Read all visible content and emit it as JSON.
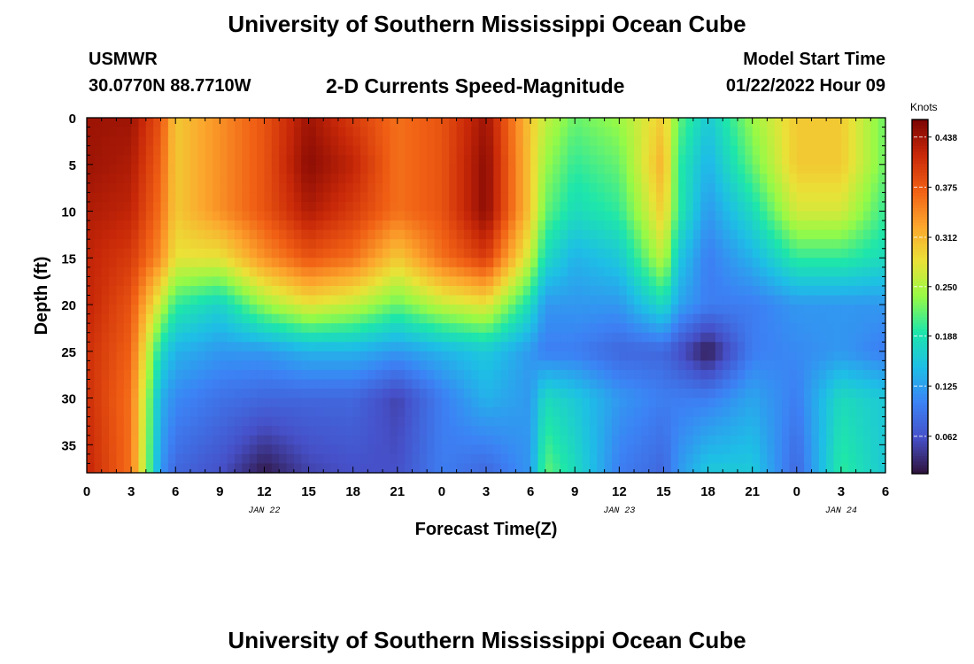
{
  "header": {
    "title": "University of Southern Mississippi Ocean Cube",
    "station": "USMWR",
    "coords": "30.0770N  88.7710W",
    "subtitle": "2-D Currents Speed-Magnitude",
    "model_start_label": "Model Start Time",
    "model_start_value": "01/22/2022 Hour 09"
  },
  "footer": {
    "title": "University of Southern Mississippi Ocean Cube"
  },
  "chart_data": {
    "type": "heatmap",
    "xlabel": "Forecast Time(Z)",
    "ylabel": "Depth (ft)",
    "x_units": "hours from 00Z Jan 22",
    "xlim": [
      0,
      54
    ],
    "ylim": [
      38,
      0
    ],
    "x_tick_labels": [
      "0",
      "3",
      "6",
      "9",
      "12",
      "15",
      "18",
      "21",
      "0",
      "3",
      "6",
      "9",
      "12",
      "15",
      "18",
      "21",
      "0",
      "3",
      "6"
    ],
    "y_ticks": [
      0,
      5,
      10,
      15,
      20,
      25,
      30,
      35
    ],
    "date_labels": [
      {
        "x": 12,
        "label": "JAN 22"
      },
      {
        "x": 36,
        "label": "JAN 23"
      },
      {
        "x": 51,
        "label": "JAN 24"
      }
    ],
    "colorbar": {
      "label": "Knots",
      "min": 0.015,
      "max": 0.46,
      "ticks": [
        0.062,
        0.125,
        0.188,
        0.25,
        0.312,
        0.375,
        0.438
      ],
      "tick_labels": [
        "0.062",
        "0.125",
        "0.188",
        "0.250",
        "0.312",
        "0.375",
        "0.438"
      ]
    },
    "columns_x": [
      0,
      3,
      5,
      6,
      9,
      12,
      15,
      18,
      21,
      24,
      27,
      30,
      31,
      33,
      36,
      39,
      40,
      42,
      45,
      48,
      51,
      54
    ],
    "rows_depth": [
      0,
      5,
      10,
      15,
      20,
      25,
      30,
      38
    ],
    "values": [
      [
        0.44,
        0.44,
        0.38,
        0.3,
        0.34,
        0.38,
        0.44,
        0.4,
        0.36,
        0.38,
        0.44,
        0.3,
        0.26,
        0.22,
        0.24,
        0.3,
        0.22,
        0.16,
        0.24,
        0.3,
        0.3,
        0.22
      ],
      [
        0.44,
        0.43,
        0.37,
        0.3,
        0.34,
        0.38,
        0.45,
        0.42,
        0.36,
        0.38,
        0.45,
        0.3,
        0.24,
        0.2,
        0.22,
        0.32,
        0.2,
        0.14,
        0.22,
        0.3,
        0.3,
        0.22
      ],
      [
        0.43,
        0.42,
        0.36,
        0.3,
        0.34,
        0.38,
        0.43,
        0.4,
        0.36,
        0.38,
        0.45,
        0.3,
        0.22,
        0.18,
        0.2,
        0.3,
        0.2,
        0.12,
        0.18,
        0.27,
        0.27,
        0.2
      ],
      [
        0.42,
        0.4,
        0.34,
        0.28,
        0.28,
        0.34,
        0.38,
        0.36,
        0.3,
        0.36,
        0.4,
        0.26,
        0.18,
        0.14,
        0.16,
        0.26,
        0.16,
        0.1,
        0.14,
        0.2,
        0.2,
        0.18
      ],
      [
        0.42,
        0.38,
        0.26,
        0.2,
        0.17,
        0.24,
        0.28,
        0.26,
        0.22,
        0.26,
        0.28,
        0.18,
        0.12,
        0.12,
        0.12,
        0.18,
        0.13,
        0.1,
        0.1,
        0.12,
        0.12,
        0.12
      ],
      [
        0.41,
        0.37,
        0.18,
        0.14,
        0.12,
        0.12,
        0.14,
        0.14,
        0.12,
        0.14,
        0.16,
        0.12,
        0.1,
        0.1,
        0.08,
        0.08,
        0.06,
        0.02,
        0.1,
        0.11,
        0.12,
        0.1
      ],
      [
        0.41,
        0.36,
        0.14,
        0.11,
        0.09,
        0.08,
        0.08,
        0.08,
        0.05,
        0.1,
        0.14,
        0.12,
        0.18,
        0.16,
        0.12,
        0.1,
        0.1,
        0.1,
        0.13,
        0.1,
        0.18,
        0.16
      ],
      [
        0.42,
        0.36,
        0.12,
        0.08,
        0.06,
        0.02,
        0.05,
        0.06,
        0.06,
        0.1,
        0.08,
        0.12,
        0.22,
        0.18,
        0.1,
        0.08,
        0.12,
        0.16,
        0.16,
        0.08,
        0.2,
        0.16
      ]
    ]
  }
}
